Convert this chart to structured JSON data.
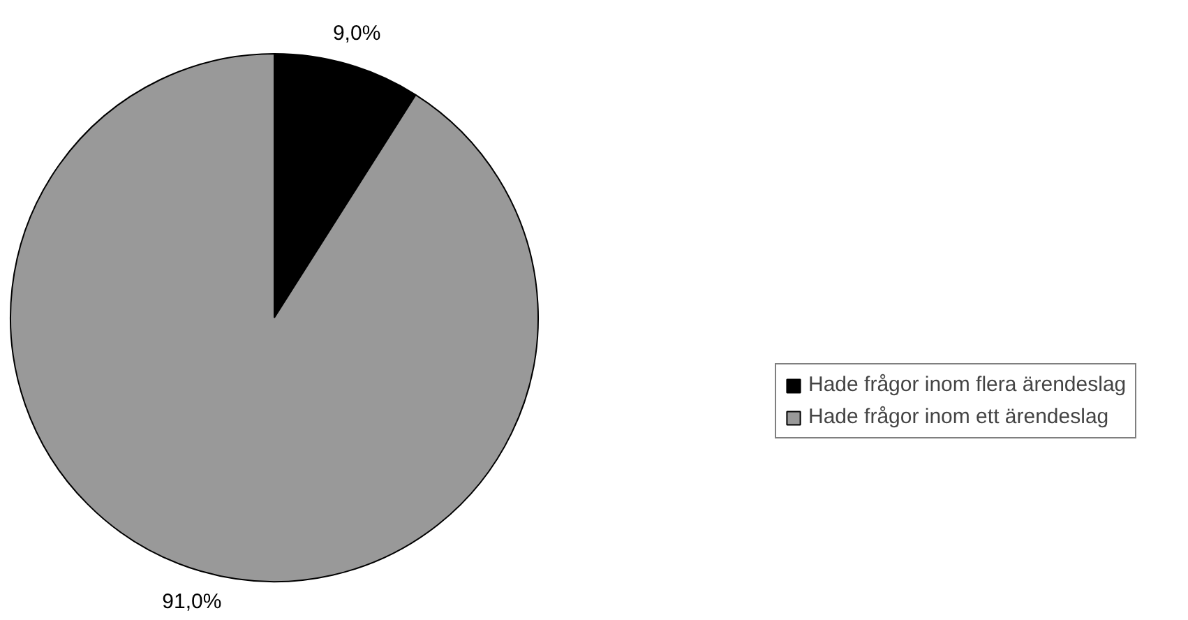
{
  "chart_data": {
    "type": "pie",
    "categories": [
      "Hade frågor inom flera ärendeslag",
      "Hade frågor inom ett ärendeslag"
    ],
    "values": [
      9.0,
      91.0
    ],
    "colors": [
      "#000000",
      "#999999"
    ],
    "value_labels": [
      "9,0%",
      "91,0%"
    ],
    "legend": "right"
  }
}
